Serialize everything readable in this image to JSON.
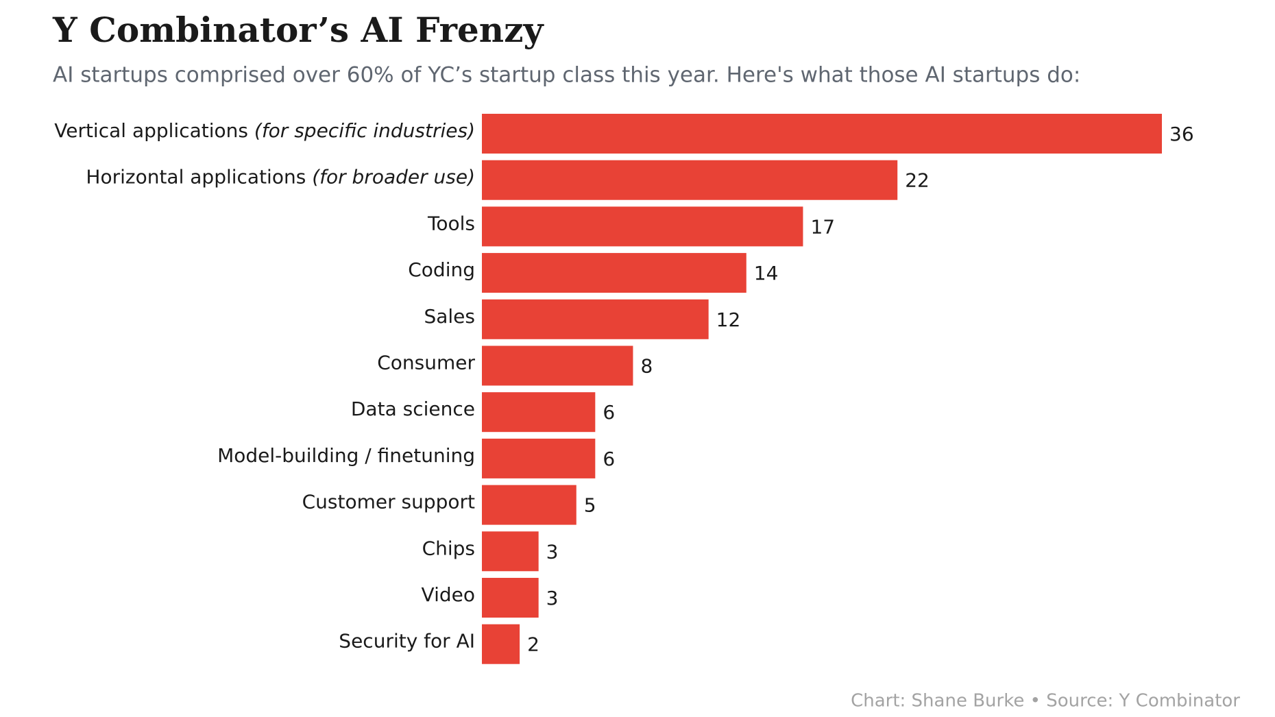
{
  "chart_data": {
    "type": "bar",
    "orientation": "horizontal",
    "title": "Y Combinator’s AI Frenzy",
    "subtitle": "AI startups comprised over 60% of YC’s startup class this year. Here's what those AI startups do:",
    "categories": [
      "Vertical applications (for specific industries)",
      "Horizontal applications (for broader use)",
      "Tools",
      "Coding",
      "Sales",
      "Consumer",
      "Data science",
      "Model-building / finetuning",
      "Customer support",
      "Chips",
      "Video",
      "Security for AI"
    ],
    "values": [
      36,
      22,
      17,
      14,
      12,
      8,
      6,
      6,
      5,
      3,
      3,
      2
    ],
    "color": "#e84236",
    "source": "Chart: Shane Burke • Source: Y Combinator"
  }
}
